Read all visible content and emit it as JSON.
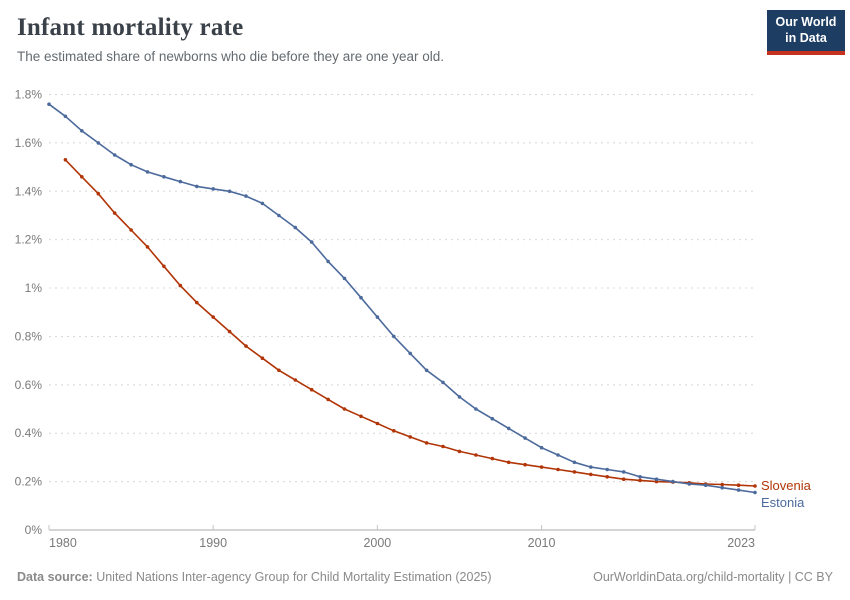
{
  "header": {
    "title": "Infant mortality rate",
    "subtitle": "The estimated share of newborns who die before they are one year old.",
    "logo": {
      "line1": "Our World",
      "line2": "in Data"
    }
  },
  "footer": {
    "datasource_label": "Data source:",
    "datasource_text": " United Nations Inter-agency Group for Child Mortality Estimation (2025)",
    "credit": "OurWorldinData.org/child-mortality | CC BY"
  },
  "colors": {
    "slovenia": "#b13507",
    "estonia": "#4c6a9c",
    "grid": "#d8d8d8",
    "axis": "#a8a8a8",
    "tick_label": "#7a7a7a"
  },
  "chart_data": {
    "type": "line",
    "title": "Infant mortality rate",
    "subtitle": "The estimated share of newborns who die before they are one year old.",
    "xlabel": "",
    "ylabel": "",
    "unit": "%",
    "xlim": [
      1980,
      2023
    ],
    "ylim": [
      0,
      1.8
    ],
    "grid": "horizontal-dashed",
    "legend_position": "end-of-line-labels",
    "x_ticks": [
      1980,
      1990,
      2000,
      2010,
      2023
    ],
    "y_ticks": [
      "0%",
      "0.2%",
      "0.4%",
      "0.6%",
      "0.8%",
      "1%",
      "1.2%",
      "1.4%",
      "1.6%",
      "1.8%"
    ],
    "y_tick_values": [
      0,
      0.2,
      0.4,
      0.6,
      0.8,
      1.0,
      1.2,
      1.4,
      1.6,
      1.8
    ],
    "series": [
      {
        "name": "Slovenia",
        "color": "#b13507",
        "years": [
          1981,
          1982,
          1983,
          1984,
          1985,
          1986,
          1987,
          1988,
          1989,
          1990,
          1991,
          1992,
          1993,
          1994,
          1995,
          1996,
          1997,
          1998,
          1999,
          2000,
          2001,
          2002,
          2003,
          2004,
          2005,
          2006,
          2007,
          2008,
          2009,
          2010,
          2011,
          2012,
          2013,
          2014,
          2015,
          2016,
          2017,
          2018,
          2019,
          2020,
          2021,
          2022,
          2023
        ],
        "values": [
          1.53,
          1.46,
          1.39,
          1.31,
          1.24,
          1.17,
          1.09,
          1.01,
          0.94,
          0.88,
          0.82,
          0.76,
          0.71,
          0.66,
          0.62,
          0.58,
          0.54,
          0.5,
          0.47,
          0.44,
          0.41,
          0.385,
          0.36,
          0.345,
          0.325,
          0.31,
          0.295,
          0.28,
          0.27,
          0.26,
          0.25,
          0.24,
          0.23,
          0.22,
          0.21,
          0.205,
          0.2,
          0.198,
          0.195,
          0.19,
          0.188,
          0.185,
          0.182
        ]
      },
      {
        "name": "Estonia",
        "color": "#4c6a9c",
        "years": [
          1980,
          1981,
          1982,
          1983,
          1984,
          1985,
          1986,
          1987,
          1988,
          1989,
          1990,
          1991,
          1992,
          1993,
          1994,
          1995,
          1996,
          1997,
          1998,
          1999,
          2000,
          2001,
          2002,
          2003,
          2004,
          2005,
          2006,
          2007,
          2008,
          2009,
          2010,
          2011,
          2012,
          2013,
          2014,
          2015,
          2016,
          2017,
          2018,
          2019,
          2020,
          2021,
          2022,
          2023
        ],
        "values": [
          1.76,
          1.71,
          1.65,
          1.6,
          1.55,
          1.51,
          1.48,
          1.46,
          1.44,
          1.42,
          1.41,
          1.4,
          1.38,
          1.35,
          1.3,
          1.25,
          1.19,
          1.11,
          1.04,
          0.96,
          0.88,
          0.8,
          0.73,
          0.66,
          0.61,
          0.55,
          0.5,
          0.46,
          0.42,
          0.38,
          0.34,
          0.31,
          0.28,
          0.26,
          0.25,
          0.24,
          0.22,
          0.21,
          0.2,
          0.19,
          0.185,
          0.175,
          0.165,
          0.155
        ]
      }
    ]
  }
}
